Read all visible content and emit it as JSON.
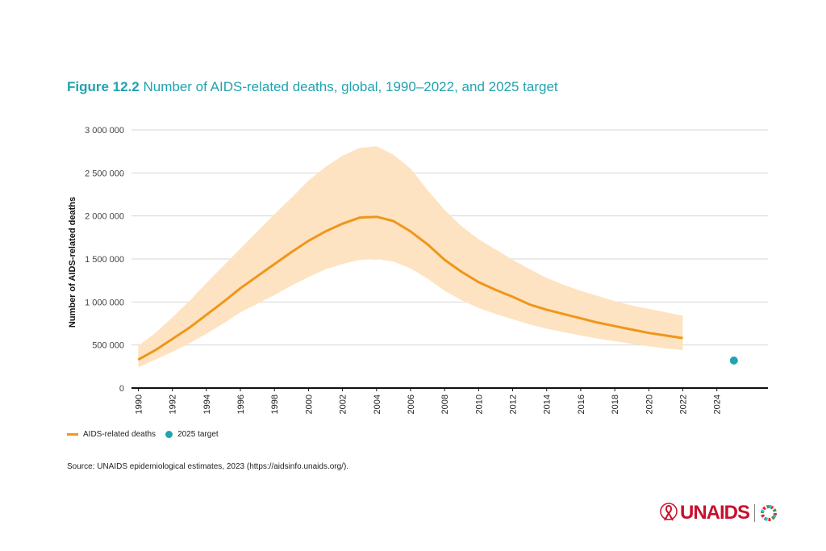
{
  "figure": {
    "label": "Figure 12.2",
    "title": "Number of AIDS-related deaths, global, 1990–2022, and 2025 target"
  },
  "chart_data": {
    "type": "line",
    "title": "Number of AIDS-related deaths, global, 1990–2022, and 2025 target",
    "xlabel": "",
    "ylabel": "Number of AIDS-related deaths",
    "xlim": [
      1989.6,
      2027.0
    ],
    "ylim": [
      0,
      3000000
    ],
    "grid": "horizontal",
    "legend_position": "bottom-left",
    "y_ticks": [
      {
        "value": 0,
        "label": "0"
      },
      {
        "value": 500000,
        "label": "500 000"
      },
      {
        "value": 1000000,
        "label": "1 000 000"
      },
      {
        "value": 1500000,
        "label": "1 500 000"
      },
      {
        "value": 2000000,
        "label": "2 000 000"
      },
      {
        "value": 2500000,
        "label": "2 500 000"
      },
      {
        "value": 3000000,
        "label": "3 000 000"
      }
    ],
    "x_ticks": [
      "1990",
      "1992",
      "1994",
      "1996",
      "1998",
      "2000",
      "2002",
      "2004",
      "2006",
      "2008",
      "2010",
      "2012",
      "2014",
      "2016",
      "2018",
      "2020",
      "2022",
      "2024"
    ],
    "series": [
      {
        "name": "AIDS-related deaths",
        "color": "#f0961a",
        "x": [
          1990,
          1991,
          1992,
          1993,
          1994,
          1995,
          1996,
          1997,
          1998,
          1999,
          2000,
          2001,
          2002,
          2003,
          2004,
          2005,
          2006,
          2007,
          2008,
          2009,
          2010,
          2011,
          2012,
          2013,
          2014,
          2015,
          2016,
          2017,
          2018,
          2019,
          2020,
          2021,
          2022
        ],
        "y": [
          330000,
          440000,
          570000,
          700000,
          850000,
          1000000,
          1160000,
          1300000,
          1440000,
          1580000,
          1710000,
          1820000,
          1910000,
          1980000,
          1990000,
          1940000,
          1820000,
          1670000,
          1490000,
          1350000,
          1230000,
          1140000,
          1060000,
          970000,
          910000,
          860000,
          810000,
          760000,
          720000,
          680000,
          640000,
          610000,
          580000
        ],
        "lower": [
          240000,
          330000,
          420000,
          520000,
          630000,
          750000,
          880000,
          980000,
          1080000,
          1190000,
          1290000,
          1380000,
          1440000,
          1490000,
          1500000,
          1470000,
          1390000,
          1270000,
          1130000,
          1020000,
          930000,
          860000,
          800000,
          740000,
          690000,
          650000,
          610000,
          575000,
          545000,
          515000,
          485000,
          460000,
          440000
        ],
        "upper": [
          490000,
          640000,
          820000,
          1010000,
          1220000,
          1420000,
          1620000,
          1820000,
          2020000,
          2210000,
          2410000,
          2570000,
          2700000,
          2790000,
          2810000,
          2710000,
          2550000,
          2300000,
          2070000,
          1880000,
          1730000,
          1610000,
          1490000,
          1380000,
          1280000,
          1200000,
          1130000,
          1070000,
          1010000,
          960000,
          920000,
          880000,
          840000
        ]
      },
      {
        "name": "2025 target",
        "color": "#21a3b0",
        "type": "scatter",
        "x": [
          2025
        ],
        "y": [
          320000
        ]
      }
    ],
    "band_color": "#fde3c2"
  },
  "legend": {
    "deaths_label": "AIDS-related deaths",
    "target_label": "2025 target"
  },
  "source": "Source: UNAIDS epidemiological estimates, 2023 (https://aidsinfo.unaids.org/).",
  "logo": {
    "text": "UNAIDS",
    "icons": [
      "red-ribbon-icon",
      "sdg-wheel-icon"
    ]
  }
}
